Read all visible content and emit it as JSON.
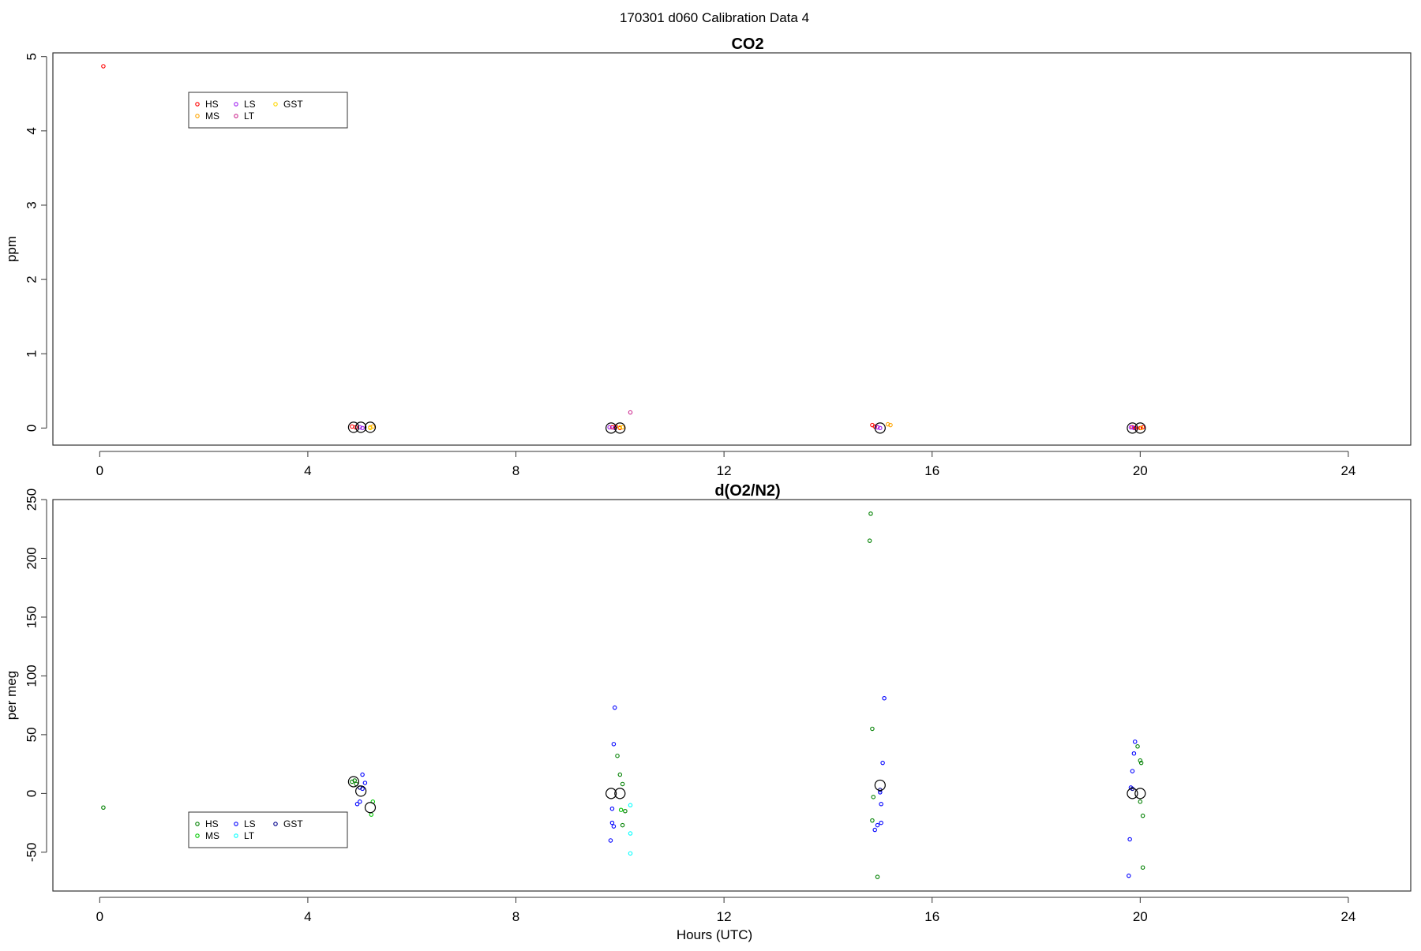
{
  "page_title": "170301   d060   Calibration Data 4",
  "chart_data": [
    {
      "type": "scatter",
      "title": "CO2",
      "xlabel": "",
      "ylabel": "ppm",
      "xlim": [
        -0.9,
        25.2
      ],
      "ylim": [
        -0.23,
        5.05
      ],
      "xticks": [
        "0",
        "4",
        "8",
        "12",
        "16",
        "20",
        "24"
      ],
      "yticks": [
        "0",
        "1",
        "2",
        "3",
        "4",
        "5"
      ],
      "legend": {
        "placement": "top-left",
        "entries": [
          {
            "label": "HS",
            "color": "#ff0000"
          },
          {
            "label": "MS",
            "color": "#ffa500"
          },
          {
            "label": "LS",
            "color": "#a020f0"
          },
          {
            "label": "LT",
            "color": "#cd2990"
          },
          {
            "label": "GST",
            "color": "#ffd700"
          }
        ]
      },
      "series": [
        {
          "name": "HS",
          "color": "#ff0000",
          "points": [
            [
              0.07,
              4.87
            ],
            [
              4.85,
              0.02
            ],
            [
              4.92,
              0.01
            ],
            [
              9.85,
              0.01
            ],
            [
              9.92,
              0.02
            ],
            [
              10.0,
              0.0
            ],
            [
              14.85,
              0.04
            ],
            [
              14.9,
              0.02
            ],
            [
              14.95,
              0.01
            ],
            [
              19.85,
              0.01
            ],
            [
              19.9,
              0.0
            ],
            [
              20.0,
              0.0
            ],
            [
              20.05,
              0.01
            ]
          ]
        },
        {
          "name": "MS",
          "color": "#ffa500",
          "points": [
            [
              5.2,
              0.01
            ],
            [
              5.25,
              0.02
            ],
            [
              10.05,
              0.01
            ],
            [
              15.15,
              0.05
            ],
            [
              15.2,
              0.04
            ],
            [
              20.02,
              0.0
            ]
          ]
        },
        {
          "name": "LS",
          "color": "#a020f0",
          "points": [
            [
              5.0,
              0.01
            ],
            [
              5.05,
              0.0
            ],
            [
              9.8,
              0.01
            ],
            [
              9.9,
              0.0
            ],
            [
              14.95,
              0.01
            ],
            [
              15.0,
              0.0
            ],
            [
              19.82,
              0.01
            ],
            [
              19.88,
              0.0
            ]
          ]
        },
        {
          "name": "LT",
          "color": "#cd2990",
          "points": [
            [
              10.2,
              0.21
            ]
          ]
        },
        {
          "name": "GST",
          "color": "#ffd700",
          "points": [
            [
              5.2,
              0.0
            ],
            [
              10.0,
              0.01
            ]
          ]
        },
        {
          "name": "",
          "color": "#000000",
          "size": "large",
          "points": [
            [
              4.88,
              0.01
            ],
            [
              5.02,
              0.01
            ],
            [
              5.2,
              0.01
            ],
            [
              9.83,
              0.0
            ],
            [
              10.0,
              0.0
            ],
            [
              15.0,
              0.0
            ],
            [
              19.85,
              0.0
            ],
            [
              20.0,
              0.0
            ]
          ]
        }
      ]
    },
    {
      "type": "scatter",
      "title": "d(O2/N2)",
      "xlabel": "Hours (UTC)",
      "ylabel": "per meg",
      "xlim": [
        -0.9,
        25.2
      ],
      "ylim": [
        -83,
        250
      ],
      "xticks": [
        "0",
        "4",
        "8",
        "12",
        "16",
        "20",
        "24"
      ],
      "yticks": [
        "-50",
        "0",
        "50",
        "100",
        "150",
        "200",
        "250"
      ],
      "legend": {
        "placement": "bottom-left",
        "entries": [
          {
            "label": "HS",
            "color": "#008000"
          },
          {
            "label": "MS",
            "color": "#00c800"
          },
          {
            "label": "LS",
            "color": "#0000ff"
          },
          {
            "label": "LT",
            "color": "#00ffff"
          },
          {
            "label": "GST",
            "color": "#00008b"
          }
        ]
      },
      "series": [
        {
          "name": "HS",
          "color": "#008000",
          "points": [
            [
              0.07,
              -12
            ],
            [
              4.85,
              10
            ],
            [
              4.9,
              11
            ],
            [
              4.93,
              8
            ],
            [
              9.95,
              32
            ],
            [
              10.0,
              16
            ],
            [
              10.05,
              8
            ],
            [
              10.1,
              -15
            ],
            [
              10.05,
              -27
            ],
            [
              14.82,
              238
            ],
            [
              14.8,
              215
            ],
            [
              14.85,
              55
            ],
            [
              14.87,
              -3
            ],
            [
              14.85,
              -23
            ],
            [
              14.95,
              -71
            ],
            [
              19.95,
              40
            ],
            [
              20.0,
              28
            ],
            [
              20.02,
              26
            ],
            [
              20.05,
              -19
            ],
            [
              20.0,
              -7
            ],
            [
              20.05,
              -63
            ]
          ]
        },
        {
          "name": "MS",
          "color": "#00c800",
          "points": [
            [
              5.25,
              -7
            ],
            [
              5.22,
              -18
            ],
            [
              10.02,
              -14
            ]
          ]
        },
        {
          "name": "LS",
          "color": "#0000ff",
          "points": [
            [
              5.05,
              16
            ],
            [
              5.1,
              9
            ],
            [
              5.0,
              -7
            ],
            [
              4.95,
              -9
            ],
            [
              5.05,
              4
            ],
            [
              9.9,
              73
            ],
            [
              9.88,
              42
            ],
            [
              9.85,
              -13
            ],
            [
              9.85,
              -25
            ],
            [
              9.88,
              -28
            ],
            [
              9.82,
              -40
            ],
            [
              15.08,
              81
            ],
            [
              15.05,
              26
            ],
            [
              15.0,
              1
            ],
            [
              15.02,
              -9
            ],
            [
              14.95,
              -27
            ],
            [
              14.9,
              -31
            ],
            [
              15.02,
              -25
            ],
            [
              19.9,
              44
            ],
            [
              19.88,
              34
            ],
            [
              19.85,
              19
            ],
            [
              19.82,
              5
            ],
            [
              19.8,
              -39
            ],
            [
              19.78,
              -70
            ]
          ]
        },
        {
          "name": "LT",
          "color": "#00ffff",
          "points": [
            [
              10.2,
              -10
            ],
            [
              10.2,
              -34
            ],
            [
              10.2,
              -51
            ]
          ]
        },
        {
          "name": "GST",
          "color": "#00008b",
          "points": [
            [
              5.0,
              5
            ],
            [
              19.85,
              4
            ],
            [
              15.0,
              3
            ]
          ]
        },
        {
          "name": "",
          "color": "#000000",
          "size": "large",
          "points": [
            [
              4.88,
              10
            ],
            [
              5.02,
              2
            ],
            [
              5.2,
              -12
            ],
            [
              9.83,
              0
            ],
            [
              10.0,
              0
            ],
            [
              15.0,
              7
            ],
            [
              19.85,
              0
            ],
            [
              20.0,
              0
            ]
          ]
        }
      ]
    }
  ]
}
